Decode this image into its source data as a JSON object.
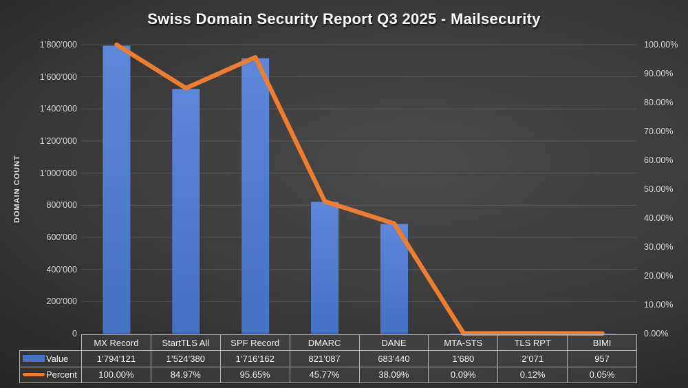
{
  "colors": {
    "bar": "#4472C4",
    "bar_top": "#5d87d8",
    "line": "#ED7D31",
    "axis_text": "#d6d6d6",
    "gridline": "rgba(255,255,255,0.12)"
  },
  "chart_data": {
    "type": "combo-bar-line",
    "title": "Swiss Domain Security Report Q3 2025 - Mailsecurity",
    "ylabel_left": "DOMAIN COUNT",
    "grid": "horizontal",
    "legend_position": "table-left",
    "categories": [
      "MX Record",
      "StartTLS All",
      "SPF Record",
      "DMARC",
      "DANE",
      "MTA-STS",
      "TLS RPT",
      "BIMI"
    ],
    "series": [
      {
        "name": "Value",
        "type": "bar",
        "axis": "left",
        "values": [
          1794121,
          1524380,
          1716162,
          821087,
          683440,
          1680,
          2071,
          957
        ],
        "display": [
          "1’794’121",
          "1’524’380",
          "1’716’162",
          "821’087",
          "683’440",
          "1’680",
          "2’071",
          "957"
        ]
      },
      {
        "name": "Percent",
        "type": "line",
        "axis": "right",
        "values": [
          100.0,
          84.97,
          95.65,
          45.77,
          38.09,
          0.09,
          0.12,
          0.05
        ],
        "display": [
          "100.00%",
          "84.97%",
          "95.65%",
          "45.77%",
          "38.09%",
          "0.09%",
          "0.12%",
          "0.05%"
        ]
      }
    ],
    "left_axis": {
      "min": 0,
      "max": 1800000,
      "ticks": [
        "1’800’000",
        "1’600’000",
        "1’400’000",
        "1’200’000",
        "1’000’000",
        "800’000",
        "600’000",
        "400’000",
        "200’000",
        "0"
      ]
    },
    "right_axis": {
      "min": 0,
      "max": 100,
      "ticks": [
        "100.00%",
        "90.00%",
        "80.00%",
        "70.00%",
        "60.00%",
        "50.00%",
        "40.00%",
        "30.00%",
        "20.00%",
        "10.00%",
        "0.00%"
      ]
    }
  }
}
